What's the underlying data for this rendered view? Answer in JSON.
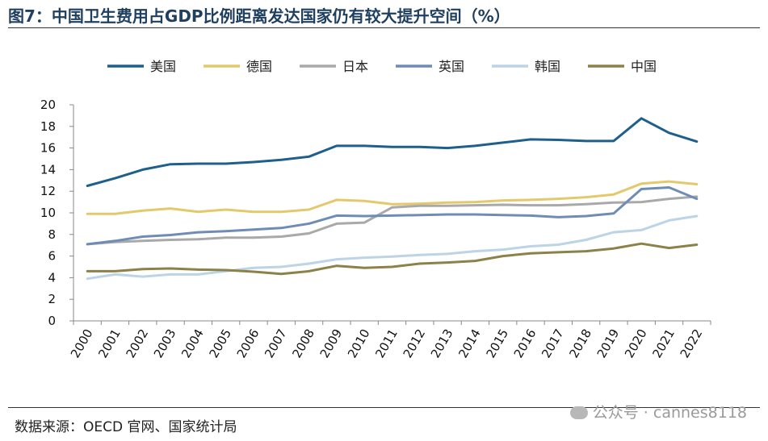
{
  "title": "图7：中国卫生费用占GDP比例距离发达国家仍有较大提升空间（%）",
  "source": "数据来源：OECD 官网、国家统计局",
  "watermark": "公众号 · cannes8118",
  "chart_data": {
    "type": "line",
    "title": "图7：中国卫生费用占GDP比例距离发达国家仍有较大提升空间（%）",
    "xlabel": "",
    "ylabel": "",
    "ylim": [
      0,
      20
    ],
    "yticks": [
      "0",
      "2",
      "4",
      "6",
      "8",
      "10",
      "12",
      "14",
      "16",
      "18",
      "20"
    ],
    "grid": false,
    "legend_position": "top",
    "categories": [
      "2000",
      "2001",
      "2002",
      "2003",
      "2004",
      "2005",
      "2006",
      "2007",
      "2008",
      "2009",
      "2010",
      "2011",
      "2012",
      "2013",
      "2014",
      "2015",
      "2016",
      "2017",
      "2018",
      "2019",
      "2020",
      "2021",
      "2022"
    ],
    "series": [
      {
        "name": "美国",
        "color": "#1f5f8b",
        "values": [
          12.5,
          13.2,
          14.0,
          14.5,
          14.55,
          14.55,
          14.7,
          14.9,
          15.2,
          16.2,
          16.2,
          16.1,
          16.1,
          16.0,
          16.2,
          16.5,
          16.8,
          16.75,
          16.65,
          16.65,
          18.75,
          17.4,
          16.6
        ]
      },
      {
        "name": "德国",
        "color": "#e3c96b",
        "values": [
          9.9,
          9.9,
          10.2,
          10.4,
          10.1,
          10.3,
          10.1,
          10.1,
          10.3,
          11.2,
          11.1,
          10.8,
          10.85,
          10.95,
          11.0,
          11.15,
          11.2,
          11.3,
          11.45,
          11.7,
          12.7,
          12.9,
          12.65
        ]
      },
      {
        "name": "日本",
        "color": "#a9a9a9",
        "values": [
          7.1,
          7.3,
          7.4,
          7.5,
          7.55,
          7.7,
          7.7,
          7.8,
          8.1,
          9.0,
          9.1,
          10.5,
          10.65,
          10.65,
          10.7,
          10.75,
          10.7,
          10.7,
          10.8,
          10.95,
          11.0,
          11.3,
          11.5
        ]
      },
      {
        "name": "英国",
        "color": "#6f8cb5",
        "values": [
          7.1,
          7.4,
          7.8,
          7.95,
          8.2,
          8.3,
          8.45,
          8.6,
          9.0,
          9.75,
          9.7,
          9.75,
          9.8,
          9.85,
          9.85,
          9.8,
          9.75,
          9.6,
          9.7,
          9.95,
          12.2,
          12.35,
          11.3
        ]
      },
      {
        "name": "韩国",
        "color": "#bcd4e6",
        "values": [
          3.9,
          4.3,
          4.1,
          4.3,
          4.3,
          4.6,
          4.9,
          5.0,
          5.3,
          5.7,
          5.85,
          5.95,
          6.1,
          6.2,
          6.45,
          6.6,
          6.9,
          7.05,
          7.5,
          8.2,
          8.4,
          9.3,
          9.7
        ]
      },
      {
        "name": "中国",
        "color": "#8c8148",
        "values": [
          4.6,
          4.6,
          4.8,
          4.85,
          4.75,
          4.7,
          4.55,
          4.35,
          4.6,
          5.1,
          4.9,
          5.0,
          5.3,
          5.4,
          5.55,
          6.0,
          6.25,
          6.35,
          6.45,
          6.7,
          7.15,
          6.75,
          7.05
        ]
      }
    ]
  }
}
